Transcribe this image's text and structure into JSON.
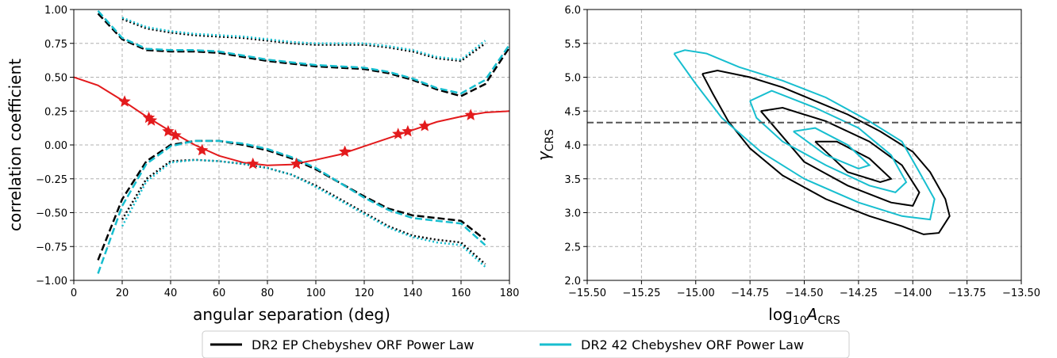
{
  "chart_data": [
    {
      "type": "line",
      "xlabel": "angular separation (deg)",
      "ylabel": "correlation coefficient",
      "xlim": [
        0,
        180
      ],
      "ylim": [
        -1,
        1
      ],
      "xticks": [
        0,
        20,
        40,
        60,
        80,
        100,
        120,
        140,
        160,
        180
      ],
      "yticks": [
        {
          "value": -1,
          "label": "−1.00"
        },
        {
          "value": -0.75,
          "label": "−0.75"
        },
        {
          "value": -0.5,
          "label": "−0.50"
        },
        {
          "value": -0.25,
          "label": "−0.25"
        },
        {
          "value": 0,
          "label": "0.00"
        },
        {
          "value": 0.25,
          "label": "0.25"
        },
        {
          "value": 0.5,
          "label": "0.50"
        },
        {
          "value": 0.75,
          "label": "0.75"
        },
        {
          "value": 1,
          "label": "1.00"
        }
      ],
      "grid": true,
      "x": [
        0,
        10,
        20,
        30,
        40,
        50,
        60,
        70,
        80,
        90,
        100,
        110,
        120,
        130,
        140,
        150,
        160,
        170,
        180
      ],
      "series": [
        {
          "color": "#e31a1c",
          "dash": "solid",
          "values": [
            0.5,
            0.44,
            0.33,
            0.21,
            0.1,
            0.0,
            -0.08,
            -0.13,
            -0.15,
            -0.145,
            -0.11,
            -0.07,
            -0.01,
            0.05,
            0.11,
            0.17,
            0.21,
            0.24,
            0.25
          ]
        },
        {
          "color": "#000000",
          "dash": "dashed",
          "values": [
            null,
            0.97,
            0.78,
            0.7,
            0.69,
            0.69,
            0.68,
            0.65,
            0.62,
            0.6,
            0.58,
            0.57,
            0.56,
            0.53,
            0.48,
            0.41,
            0.36,
            0.45,
            0.72
          ]
        },
        {
          "color": "#000000",
          "dash": "dotted",
          "values": [
            null,
            null,
            0.93,
            0.86,
            0.83,
            0.81,
            0.8,
            0.79,
            0.77,
            0.75,
            0.74,
            0.74,
            0.74,
            0.72,
            0.69,
            0.64,
            0.62,
            0.75,
            null
          ]
        },
        {
          "color": "#000000",
          "dash": "dashed",
          "values": [
            null,
            -0.85,
            -0.4,
            -0.12,
            0.0,
            0.03,
            0.03,
            0.0,
            -0.04,
            -0.1,
            -0.18,
            -0.28,
            -0.38,
            -0.47,
            -0.52,
            -0.54,
            -0.56,
            -0.7,
            null
          ]
        },
        {
          "color": "#000000",
          "dash": "dotted",
          "values": [
            null,
            null,
            -0.55,
            -0.25,
            -0.12,
            -0.11,
            -0.12,
            -0.14,
            -0.17,
            -0.22,
            -0.3,
            -0.4,
            -0.5,
            -0.6,
            -0.67,
            -0.7,
            -0.72,
            -0.88,
            null
          ]
        },
        {
          "color": "#17becf",
          "dash": "dashed",
          "values": [
            null,
            0.99,
            0.79,
            0.71,
            0.7,
            0.7,
            0.69,
            0.66,
            0.63,
            0.61,
            0.59,
            0.58,
            0.57,
            0.54,
            0.49,
            0.42,
            0.38,
            0.48,
            0.74
          ]
        },
        {
          "color": "#17becf",
          "dash": "dotted",
          "values": [
            null,
            null,
            0.94,
            0.87,
            0.84,
            0.82,
            0.81,
            0.8,
            0.78,
            0.76,
            0.75,
            0.75,
            0.75,
            0.73,
            0.7,
            0.65,
            0.63,
            0.77,
            null
          ]
        },
        {
          "color": "#17becf",
          "dash": "dashed",
          "values": [
            null,
            -0.95,
            -0.45,
            -0.14,
            -0.01,
            0.03,
            0.03,
            0.01,
            -0.03,
            -0.09,
            -0.17,
            -0.28,
            -0.39,
            -0.48,
            -0.54,
            -0.56,
            -0.58,
            -0.74,
            null
          ]
        },
        {
          "color": "#17becf",
          "dash": "dotted",
          "values": [
            null,
            null,
            -0.6,
            -0.27,
            -0.13,
            -0.11,
            -0.12,
            -0.14,
            -0.17,
            -0.22,
            -0.31,
            -0.41,
            -0.51,
            -0.61,
            -0.68,
            -0.72,
            -0.74,
            -0.9,
            null
          ]
        }
      ],
      "points": {
        "color": "#e31a1c",
        "marker": "star",
        "x": [
          21,
          31,
          32,
          39,
          42,
          53,
          74,
          92,
          112,
          134,
          138,
          145,
          164
        ],
        "y": [
          0.32,
          0.2,
          0.18,
          0.1,
          0.07,
          -0.04,
          -0.14,
          -0.14,
          -0.05,
          0.08,
          0.1,
          0.14,
          0.22
        ]
      }
    },
    {
      "type": "contour",
      "xlabel": [
        "log",
        "10",
        "A",
        "CRS"
      ],
      "ylabel": [
        "γ",
        "CRS"
      ],
      "xlim": [
        -15.5,
        -13.5
      ],
      "ylim": [
        2,
        6
      ],
      "xticks": [
        {
          "value": -15.5,
          "label": "−15.50"
        },
        {
          "value": -15.25,
          "label": "−15.25"
        },
        {
          "value": -15,
          "label": "−15.00"
        },
        {
          "value": -14.75,
          "label": "−14.75"
        },
        {
          "value": -14.5,
          "label": "−14.50"
        },
        {
          "value": -14.25,
          "label": "−14.25"
        },
        {
          "value": -14,
          "label": "−14.00"
        },
        {
          "value": -13.75,
          "label": "−13.75"
        },
        {
          "value": -13.5,
          "label": "−13.50"
        }
      ],
      "yticks": [
        {
          "value": 2,
          "label": "2.0"
        },
        2.5,
        {
          "value": 3,
          "label": "3.0"
        },
        3.5,
        {
          "value": 4,
          "label": "4.0"
        },
        4.5,
        {
          "value": 5,
          "label": "5.0"
        },
        5.5,
        {
          "value": 6,
          "label": "6.0"
        }
      ],
      "grid": true,
      "hline": {
        "value": 4.33,
        "color": "#555555"
      },
      "contours": [
        {
          "color": "#000000",
          "x": [
            -14.97,
            -14.9,
            -14.75,
            -14.6,
            -14.45,
            -14.3,
            -14.15,
            -14.0,
            -13.92,
            -13.85,
            -13.83,
            -13.88,
            -13.95,
            -14.05,
            -14.2,
            -14.4,
            -14.6,
            -14.75,
            -14.85,
            -14.92,
            -14.97
          ],
          "y": [
            5.05,
            5.1,
            5.0,
            4.85,
            4.65,
            4.45,
            4.2,
            3.9,
            3.6,
            3.2,
            2.95,
            2.7,
            2.68,
            2.8,
            2.95,
            3.2,
            3.55,
            3.95,
            4.35,
            4.75,
            5.05
          ]
        },
        {
          "color": "#000000",
          "x": [
            -14.7,
            -14.6,
            -14.4,
            -14.2,
            -14.05,
            -13.97,
            -14.0,
            -14.1,
            -14.3,
            -14.5,
            -14.7
          ],
          "y": [
            4.5,
            4.55,
            4.35,
            4.05,
            3.7,
            3.3,
            3.1,
            3.15,
            3.4,
            3.75,
            4.5
          ]
        },
        {
          "color": "#000000",
          "x": [
            -14.45,
            -14.35,
            -14.2,
            -14.1,
            -14.15,
            -14.3,
            -14.45
          ],
          "y": [
            4.05,
            4.05,
            3.8,
            3.5,
            3.45,
            3.6,
            4.05
          ]
        },
        {
          "color": "#17becf",
          "x": [
            -15.1,
            -15.05,
            -14.95,
            -14.8,
            -14.6,
            -14.4,
            -14.2,
            -14.05,
            -13.97,
            -13.9,
            -13.92,
            -14.05,
            -14.25,
            -14.5,
            -14.7,
            -14.88,
            -15.0,
            -15.1
          ],
          "y": [
            5.35,
            5.4,
            5.35,
            5.15,
            4.95,
            4.7,
            4.35,
            4.05,
            3.6,
            3.2,
            2.9,
            2.95,
            3.15,
            3.5,
            3.9,
            4.4,
            4.9,
            5.35
          ]
        },
        {
          "color": "#17becf",
          "x": [
            -14.75,
            -14.65,
            -14.45,
            -14.25,
            -14.1,
            -14.03,
            -14.08,
            -14.2,
            -14.4,
            -14.6,
            -14.72,
            -14.75
          ],
          "y": [
            4.65,
            4.8,
            4.55,
            4.25,
            3.85,
            3.45,
            3.3,
            3.4,
            3.7,
            4.05,
            4.4,
            4.65
          ]
        },
        {
          "color": "#17becf",
          "x": [
            -14.55,
            -14.45,
            -14.3,
            -14.2,
            -14.25,
            -14.4,
            -14.55
          ],
          "y": [
            4.2,
            4.25,
            4.0,
            3.7,
            3.65,
            3.85,
            4.2
          ]
        }
      ]
    }
  ],
  "legend": {
    "entries": [
      {
        "label": "DR2 EP Chebyshev ORF Power Law",
        "color": "#000000"
      },
      {
        "label": "DR2 42 Chebyshev ORF Power Law",
        "color": "#17becf"
      }
    ]
  }
}
